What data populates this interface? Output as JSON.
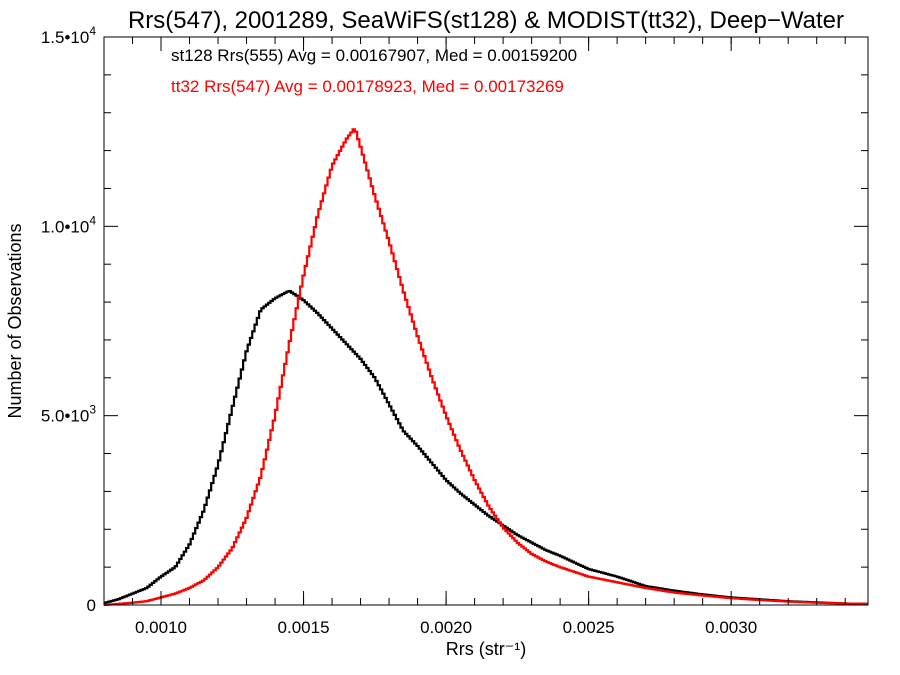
{
  "chart_data": {
    "type": "line",
    "title": "Rrs(547), 2001289, SeaWiFS(st128) & MODIST(tt32), Deep−Water",
    "xlabel": "Rrs (str⁻¹)",
    "ylabel": "Number of Observations",
    "xlim": [
      0.0008,
      0.00348
    ],
    "ylim": [
      0,
      15000
    ],
    "grid": false,
    "x_ticks": [
      {
        "value": 0.001,
        "label": "0.0010"
      },
      {
        "value": 0.0015,
        "label": "0.0015"
      },
      {
        "value": 0.002,
        "label": "0.0020"
      },
      {
        "value": 0.0025,
        "label": "0.0025"
      },
      {
        "value": 0.003,
        "label": "0.0030"
      }
    ],
    "y_ticks": [
      {
        "value": 0,
        "mantissa": "0",
        "exponent": ""
      },
      {
        "value": 5000,
        "mantissa": "5.0•10",
        "exponent": "3"
      },
      {
        "value": 10000,
        "mantissa": "1.0•10",
        "exponent": "4"
      },
      {
        "value": 15000,
        "mantissa": "1.5•10",
        "exponent": "4"
      }
    ],
    "annotations": [
      {
        "text": "st128 Rrs(555) Avg = 0.00167907, Med = 0.00159200",
        "color": "#000000"
      },
      {
        "text": "tt32 Rrs(547) Avg = 0.00178923, Med = 0.00173269",
        "color": "#ff0000"
      }
    ],
    "series": [
      {
        "color": "#000000",
        "style": "step",
        "x": [
          0.0008,
          0.00085,
          0.0009,
          0.00095,
          0.001,
          0.00105,
          0.0011,
          0.00115,
          0.0012,
          0.00125,
          0.0013,
          0.00135,
          0.0014,
          0.00145,
          0.0015,
          0.00155,
          0.0016,
          0.00165,
          0.0017,
          0.00175,
          0.0018,
          0.00185,
          0.0019,
          0.00195,
          0.002,
          0.00205,
          0.0021,
          0.00215,
          0.0022,
          0.00225,
          0.0023,
          0.00235,
          0.0024,
          0.0025,
          0.0026,
          0.0027,
          0.0028,
          0.0029,
          0.003,
          0.0031,
          0.0032,
          0.0033,
          0.0034,
          0.00348
        ],
        "y": [
          50,
          150,
          300,
          450,
          750,
          1000,
          1600,
          2500,
          3700,
          5200,
          6700,
          7800,
          8100,
          8300,
          8050,
          7700,
          7300,
          6900,
          6500,
          6000,
          5300,
          4600,
          4200,
          3750,
          3300,
          2950,
          2650,
          2350,
          2100,
          1850,
          1650,
          1450,
          1300,
          950,
          750,
          500,
          380,
          280,
          200,
          150,
          100,
          70,
          40,
          30
        ]
      },
      {
        "color": "#ff0000",
        "style": "step",
        "x": [
          0.0008,
          0.00085,
          0.0009,
          0.00095,
          0.001,
          0.00105,
          0.0011,
          0.00115,
          0.0012,
          0.00125,
          0.0013,
          0.00135,
          0.0014,
          0.00145,
          0.0015,
          0.00155,
          0.0016,
          0.00165,
          0.00168,
          0.0017,
          0.00175,
          0.0018,
          0.00185,
          0.0019,
          0.00195,
          0.002,
          0.00205,
          0.0021,
          0.00215,
          0.0022,
          0.00225,
          0.0023,
          0.00235,
          0.0024,
          0.0025,
          0.0026,
          0.0027,
          0.0028,
          0.0029,
          0.003,
          0.0031,
          0.0032,
          0.0033,
          0.0034,
          0.00348
        ],
        "y": [
          0,
          30,
          60,
          100,
          200,
          300,
          450,
          650,
          1000,
          1500,
          2300,
          3400,
          5000,
          6900,
          8700,
          10300,
          11600,
          12300,
          12600,
          12100,
          10800,
          9600,
          8300,
          7100,
          6000,
          5000,
          4100,
          3300,
          2600,
          2050,
          1650,
          1350,
          1150,
          1000,
          750,
          600,
          450,
          330,
          250,
          180,
          130,
          90,
          60,
          40,
          30
        ]
      }
    ]
  }
}
